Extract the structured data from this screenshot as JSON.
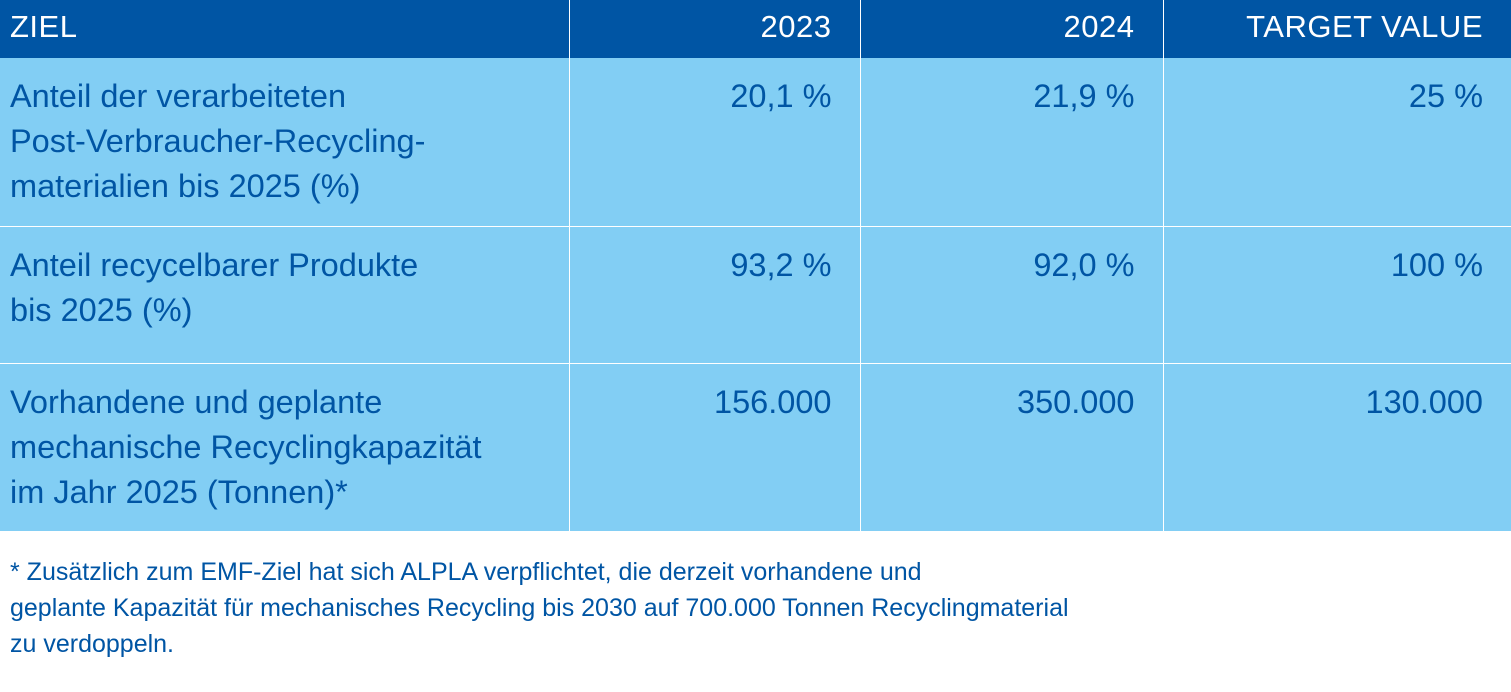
{
  "table": {
    "headers": {
      "goal": "ZIEL",
      "year_2023": "2023",
      "year_2024": "2024",
      "target": "TARGET VALUE"
    },
    "rows": [
      {
        "goal_lines": [
          "Anteil der verarbeiteten",
          "Post-Verbraucher-Recycling-",
          "materialien bis 2025 (%)"
        ],
        "value_2023": "20,1 %",
        "value_2024": "21,9 %",
        "target": "25 %"
      },
      {
        "goal_lines": [
          "Anteil recycelbarer Produkte",
          "bis 2025 (%)"
        ],
        "value_2023": "93,2 %",
        "value_2024": "92,0 %",
        "target": "100 %"
      },
      {
        "goal_lines": [
          "Vorhandene und geplante",
          "mechanische Recyclingkapazität",
          "im Jahr 2025 (Tonnen)*"
        ],
        "value_2023": "156.000",
        "value_2024": "350.000",
        "target": "130.000"
      }
    ]
  },
  "footnote": {
    "lines": [
      "* Zusätzlich zum EMF-Ziel hat sich ALPLA verpflichtet, die derzeit vorhandene und",
      "geplante Kapazität für mechanisches Recycling bis 2030 auf 700.000 Tonnen Recyclingmaterial",
      "zu verdoppeln."
    ]
  },
  "colors": {
    "header_background": "#0055a4",
    "cell_background": "#82cef4",
    "text_primary": "#0055a4",
    "header_text": "#ffffff"
  }
}
